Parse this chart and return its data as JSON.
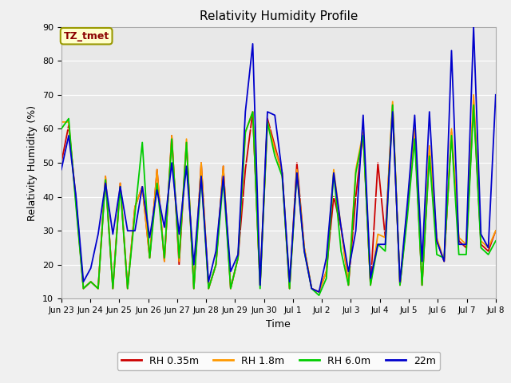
{
  "title": "Relativity Humidity Profile",
  "xlabel": "Time",
  "ylabel": "Relativity Humidity (%)",
  "annotation": "TZ_tmet",
  "ylim": [
    10,
    90
  ],
  "yticks": [
    10,
    20,
    30,
    40,
    50,
    60,
    70,
    80,
    90
  ],
  "fig_bg_color": "#f0f0f0",
  "plot_bg_color": "#e8e8e8",
  "line_colors": {
    "rh035": "#cc0000",
    "rh18": "#ff9900",
    "rh60": "#00cc00",
    "rh22": "#0000cc"
  },
  "legend_labels": [
    "RH 0.35m",
    "RH 1.8m",
    "RH 6.0m",
    "22m"
  ],
  "x_tick_labels": [
    "Jun 23",
    "Jun 24",
    "Jun 25",
    "Jun 26",
    "Jun 27",
    "Jun 28",
    "Jun 29",
    "Jun 30",
    "Jul 1",
    "Jul 2",
    "Jul 3",
    "Jul 4",
    "Jul 5",
    "Jul 6",
    "Jul 7",
    "Jul 8"
  ],
  "rh035": [
    50,
    61,
    39,
    13,
    15,
    13,
    46,
    13,
    44,
    13,
    37,
    43,
    22,
    48,
    21,
    58,
    20,
    56,
    13,
    50,
    13,
    20,
    49,
    13,
    22,
    48,
    65,
    14,
    63,
    55,
    47,
    13,
    50,
    25,
    13,
    12,
    18,
    40,
    31,
    14,
    40,
    59,
    14,
    50,
    28,
    67,
    14,
    36,
    60,
    14,
    53,
    27,
    21,
    59,
    27,
    25,
    68,
    26,
    24,
    30
  ],
  "rh18": [
    62,
    62,
    38,
    13,
    15,
    13,
    46,
    13,
    44,
    13,
    37,
    43,
    22,
    48,
    21,
    58,
    21,
    57,
    13,
    50,
    13,
    20,
    49,
    13,
    22,
    59,
    65,
    14,
    62,
    54,
    47,
    13,
    48,
    25,
    13,
    12,
    18,
    48,
    31,
    14,
    48,
    59,
    14,
    29,
    28,
    68,
    14,
    36,
    60,
    14,
    55,
    28,
    21,
    60,
    28,
    26,
    70,
    27,
    25,
    30
  ],
  "rh60": [
    60,
    63,
    37,
    13,
    15,
    13,
    45,
    13,
    43,
    13,
    35,
    56,
    22,
    44,
    22,
    57,
    22,
    56,
    13,
    46,
    13,
    20,
    45,
    13,
    22,
    59,
    65,
    13,
    62,
    52,
    46,
    13,
    47,
    24,
    13,
    11,
    16,
    47,
    24,
    14,
    47,
    58,
    14,
    26,
    24,
    67,
    14,
    34,
    57,
    14,
    52,
    23,
    22,
    58,
    23,
    23,
    67,
    25,
    23,
    27
  ],
  "rh22": [
    48,
    58,
    40,
    15,
    19,
    29,
    44,
    29,
    43,
    30,
    30,
    43,
    28,
    42,
    31,
    50,
    29,
    49,
    20,
    46,
    15,
    24,
    46,
    18,
    23,
    65,
    85,
    14,
    65,
    64,
    47,
    15,
    47,
    24,
    13,
    12,
    22,
    47,
    31,
    18,
    30,
    64,
    16,
    26,
    26,
    65,
    15,
    38,
    64,
    21,
    65,
    27,
    21,
    83,
    26,
    26,
    90,
    29,
    25,
    70
  ]
}
